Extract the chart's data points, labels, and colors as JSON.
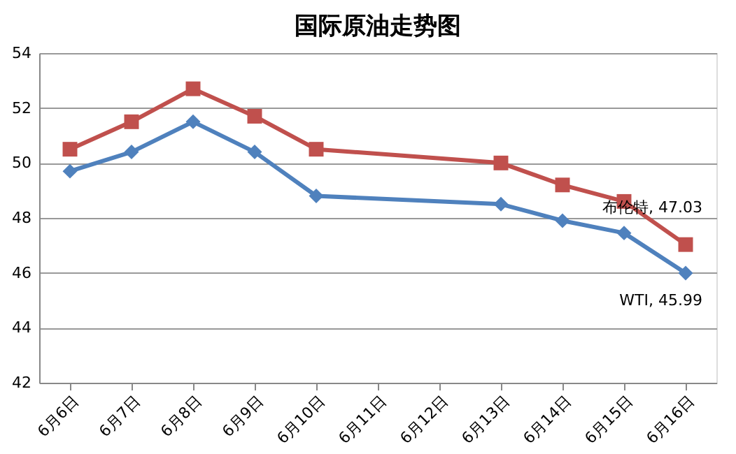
{
  "chart_data": {
    "type": "line",
    "title": "国际原油走势图",
    "categories": [
      "6月6日",
      "6月7日",
      "6月8日",
      "6月9日",
      "6月10日",
      "6月11日",
      "6月12日",
      "6月13日",
      "6月14日",
      "6月15日",
      "6月16日"
    ],
    "series": [
      {
        "color": "#c0504d",
        "marker": "square",
        "values": [
          50.5,
          51.5,
          52.7,
          51.7,
          50.5,
          null,
          null,
          50.0,
          49.2,
          48.6,
          47.03
        ],
        "value_labels": [
          null,
          null,
          null,
          null,
          null,
          null,
          null,
          null,
          null,
          null,
          "布伦特, 47.03"
        ]
      },
      {
        "color": "#4f81bd",
        "marker": "diamond",
        "values": [
          49.7,
          50.4,
          51.5,
          50.4,
          48.8,
          null,
          null,
          48.5,
          47.9,
          47.45,
          45.99
        ],
        "value_labels": [
          null,
          null,
          null,
          null,
          null,
          null,
          null,
          null,
          null,
          null,
          "WTI, 45.99"
        ]
      }
    ],
    "ylim": [
      42,
      54
    ],
    "yticks": [
      42,
      44,
      46,
      48,
      50,
      52,
      54
    ],
    "grid": "y",
    "legend": false,
    "line_style": "solid"
  }
}
